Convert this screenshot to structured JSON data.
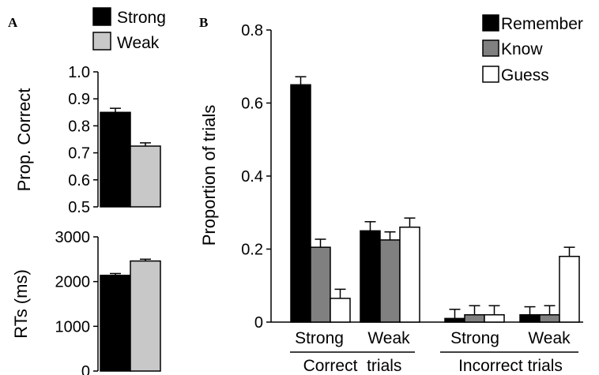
{
  "colors": {
    "strong": "#000000",
    "weak": "#c8c8c8",
    "remember": "#000000",
    "know": "#808080",
    "guess": "#ffffff"
  },
  "chart_data": [
    {
      "panel": "A",
      "type": "bar",
      "legend": [
        "Strong",
        "Weak"
      ],
      "ylabel": "Prop. Correct",
      "ylim": [
        0.5,
        1.0
      ],
      "yticks": [
        "0.5",
        "0.6",
        "0.7",
        "0.8",
        "0.9",
        "1.0"
      ],
      "series": [
        {
          "name": "Strong",
          "values": [
            0.85
          ],
          "error": [
            0.015
          ]
        },
        {
          "name": "Weak",
          "values": [
            0.725
          ],
          "error": [
            0.012
          ]
        }
      ]
    },
    {
      "panel": "",
      "type": "bar",
      "ylabel": "RTs (ms)",
      "ylim": [
        0,
        3000
      ],
      "yticks": [
        "0",
        "1000",
        "2000",
        "3000"
      ],
      "series": [
        {
          "name": "Strong",
          "values": [
            2140
          ],
          "error": [
            40
          ]
        },
        {
          "name": "Weak",
          "values": [
            2460
          ],
          "error": [
            40
          ]
        }
      ]
    },
    {
      "panel": "B",
      "type": "bar",
      "ylabel": "Proportion of trials",
      "ylim": [
        0,
        0.8
      ],
      "yticks": [
        "0",
        "0.2",
        "0.4",
        "0.6",
        "0.8"
      ],
      "categories": [
        "Strong",
        "Weak",
        "Strong",
        "Weak"
      ],
      "groups": [
        "Correct  trials",
        "Incorrect trials"
      ],
      "legend": [
        "Remember",
        "Know",
        "Guess"
      ],
      "series": [
        {
          "name": "Remember",
          "values": [
            0.65,
            0.25,
            0.01,
            0.02
          ],
          "error": [
            0.022,
            0.025,
            0.025,
            0.022
          ]
        },
        {
          "name": "Know",
          "values": [
            0.205,
            0.225,
            0.02,
            0.02
          ],
          "error": [
            0.022,
            0.022,
            0.025,
            0.025
          ]
        },
        {
          "name": "Guess",
          "values": [
            0.065,
            0.26,
            0.02,
            0.18
          ],
          "error": [
            0.025,
            0.025,
            0.025,
            0.025
          ]
        }
      ]
    }
  ]
}
